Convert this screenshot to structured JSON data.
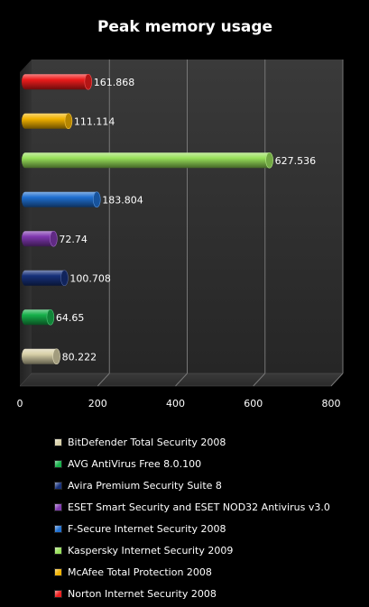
{
  "chart_data": {
    "type": "bar",
    "orientation": "horizontal",
    "title": "Peak memory usage",
    "xlim": [
      0,
      800
    ],
    "xticks": [
      0,
      200,
      400,
      600,
      800
    ],
    "grid": true,
    "legend_position": "bottom",
    "series": [
      {
        "name": "BitDefender Total Security 2008",
        "value": 80.222,
        "label": "80.222",
        "color": "#d8d0a8"
      },
      {
        "name": "AVG AntiVirus Free 8.0.100",
        "value": 64.65,
        "label": "64.65",
        "color": "#16b04a"
      },
      {
        "name": "Avira Premium Security Suite 8",
        "value": 100.708,
        "label": "100.708",
        "color": "#16307a"
      },
      {
        "name": "ESET Smart Security and ESET  NOD32 Antivirus v3.0",
        "value": 72.74,
        "label": "72.74",
        "color": "#8038b0"
      },
      {
        "name": "F-Secure Internet Security 2008",
        "value": 183.804,
        "label": "183.804",
        "color": "#1f6fd0"
      },
      {
        "name": "Kaspersky Internet Security 2009",
        "value": 627.536,
        "label": "627.536",
        "color": "#98e05a"
      },
      {
        "name": "McAfee Total Protection 2008",
        "value": 111.114,
        "label": "111.114",
        "color": "#f2b200"
      },
      {
        "name": "Norton Internet Security 2008",
        "value": 161.868,
        "label": "161.868",
        "color": "#ee1c1c"
      }
    ]
  }
}
